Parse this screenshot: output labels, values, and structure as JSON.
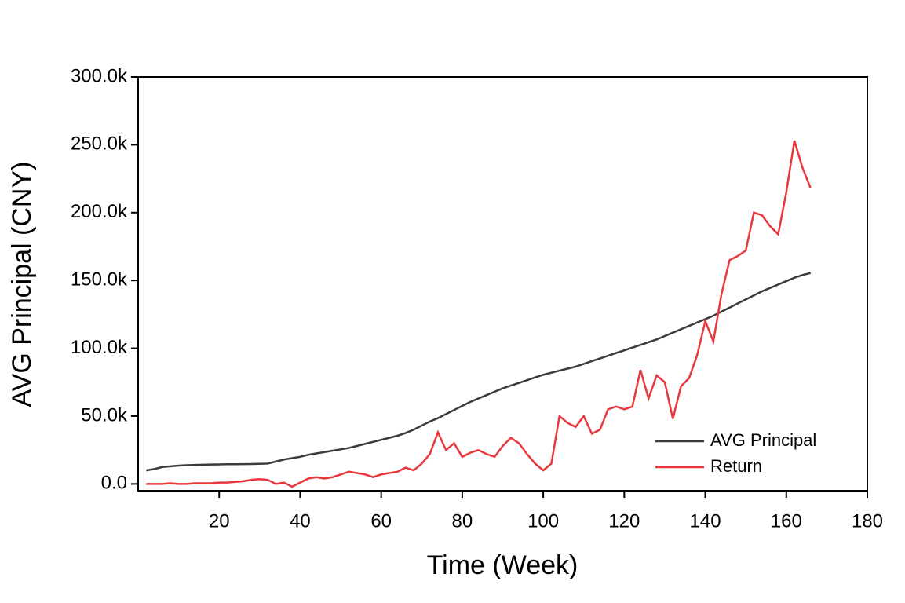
{
  "chart_data": {
    "type": "line",
    "x_label": "Time (Week)",
    "y_label": "AVG Principal (CNY)",
    "x": [
      2,
      4,
      6,
      8,
      10,
      12,
      14,
      16,
      18,
      20,
      22,
      24,
      26,
      28,
      30,
      32,
      34,
      36,
      38,
      40,
      42,
      44,
      46,
      48,
      50,
      52,
      54,
      56,
      58,
      60,
      62,
      64,
      66,
      68,
      70,
      72,
      74,
      76,
      78,
      80,
      82,
      84,
      86,
      88,
      90,
      92,
      94,
      96,
      98,
      100,
      102,
      104,
      106,
      108,
      110,
      112,
      114,
      116,
      118,
      120,
      122,
      124,
      126,
      128,
      130,
      132,
      134,
      136,
      138,
      140,
      142,
      144,
      146,
      148,
      150,
      152,
      154,
      156,
      158,
      160,
      162,
      164,
      166
    ],
    "series": [
      {
        "name": "AVG Principal",
        "color": "#3b3b3b",
        "values": [
          10000,
          11000,
          12500,
          13000,
          13500,
          13800,
          14000,
          14200,
          14300,
          14400,
          14500,
          14500,
          14600,
          14700,
          14800,
          15000,
          16500,
          18000,
          19000,
          20000,
          21500,
          22500,
          23500,
          24500,
          25500,
          26500,
          28000,
          29500,
          31000,
          32500,
          34000,
          35500,
          37500,
          40000,
          43000,
          46000,
          48500,
          51500,
          54500,
          57500,
          60500,
          63000,
          65500,
          68000,
          70500,
          72500,
          74500,
          76500,
          78500,
          80500,
          82000,
          83500,
          85000,
          86500,
          88500,
          90500,
          92500,
          94500,
          96500,
          98500,
          100500,
          102500,
          104500,
          106500,
          109000,
          111500,
          114000,
          116500,
          119000,
          121500,
          124000,
          127000,
          130000,
          133000,
          136000,
          139000,
          142000,
          144500,
          147000,
          149500,
          152000,
          154000,
          155500
        ]
      },
      {
        "name": "Return",
        "color": "#e8383d",
        "values": [
          0,
          0,
          0,
          500,
          0,
          0,
          500,
          500,
          500,
          1000,
          1000,
          1500,
          2000,
          3000,
          3500,
          3000,
          0,
          1000,
          -2000,
          1000,
          4000,
          5000,
          4000,
          5000,
          7000,
          9000,
          8000,
          7000,
          5000,
          7000,
          8000,
          9000,
          12000,
          10000,
          15000,
          22000,
          38000,
          25000,
          30000,
          20000,
          23000,
          25000,
          22000,
          20000,
          28000,
          34000,
          30000,
          22000,
          15000,
          10000,
          15000,
          50000,
          45000,
          42000,
          50000,
          37000,
          40000,
          55000,
          57000,
          55000,
          57000,
          84000,
          63000,
          80000,
          75000,
          48000,
          72000,
          78000,
          95000,
          120000,
          105000,
          140000,
          165000,
          168000,
          172000,
          200000,
          198000,
          190000,
          184000,
          215000,
          253000,
          233000,
          218000
        ]
      }
    ],
    "xlim": [
      0,
      180
    ],
    "xticks": [
      20,
      40,
      60,
      80,
      100,
      120,
      140,
      160,
      180
    ],
    "ylim": [
      -5000,
      300000
    ],
    "yticks": [
      {
        "value": 0,
        "label": "0.0"
      },
      {
        "value": 50000,
        "label": "50.0k"
      },
      {
        "value": 100000,
        "label": "100.0k"
      },
      {
        "value": 150000,
        "label": "150.0k"
      },
      {
        "value": 200000,
        "label": "200.0k"
      },
      {
        "value": 250000,
        "label": "250.0k"
      },
      {
        "value": 300000,
        "label": "300.0k"
      }
    ],
    "legend": "lower right",
    "grid": false
  }
}
